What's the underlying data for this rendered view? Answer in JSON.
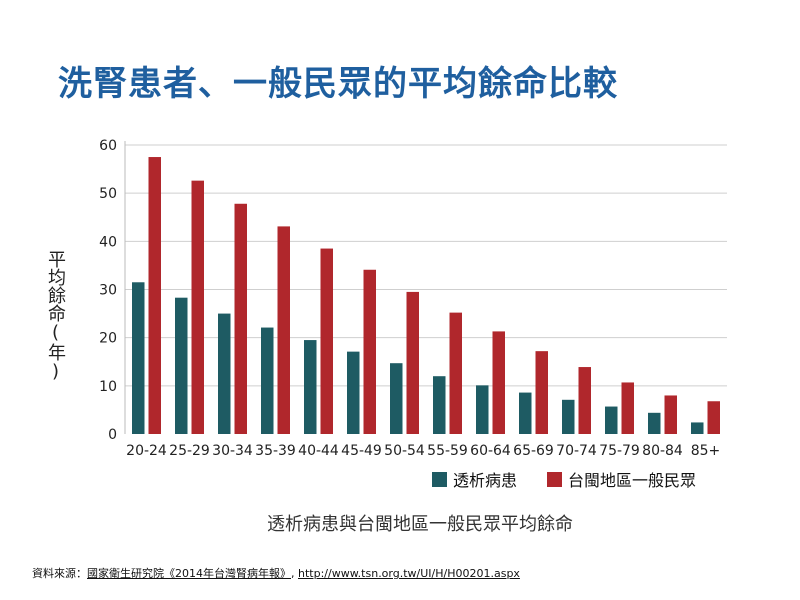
{
  "title": "洗腎患者、一般民眾的平均餘命比較",
  "colors": {
    "title": "#1f5f9f",
    "dialysis": "#1e5b63",
    "general": "#b0272c",
    "grid": "#cfcfcf"
  },
  "chart_data": {
    "type": "bar",
    "xlabel": "透析病患與台閩地區一般民眾平均餘命",
    "ylabel": "平均餘命(年)",
    "ylim": [
      0,
      60
    ],
    "yticks": [
      0,
      10,
      20,
      30,
      40,
      50,
      60
    ],
    "grid": true,
    "legend_position": "bottom-right",
    "categories": [
      "20-24",
      "25-29",
      "30-34",
      "35-39",
      "40-44",
      "45-49",
      "50-54",
      "55-59",
      "60-64",
      "65-69",
      "70-74",
      "75-79",
      "80-84",
      "85+"
    ],
    "series": [
      {
        "name": "透析病患",
        "color": "#1e5b63",
        "values": [
          31.5,
          28.3,
          25.0,
          22.1,
          19.5,
          17.1,
          14.7,
          12.0,
          10.1,
          8.6,
          7.1,
          5.7,
          4.4,
          2.4
        ]
      },
      {
        "name": "台閩地區一般民眾",
        "color": "#b0272c",
        "values": [
          57.5,
          52.6,
          47.8,
          43.1,
          38.5,
          34.1,
          29.5,
          25.2,
          21.3,
          17.2,
          13.9,
          10.7,
          8.0,
          6.8
        ]
      }
    ]
  },
  "source": {
    "prefix": "資料來源：",
    "publication": "國家衛生研究院《2014年台灣腎病年報》",
    "separator": ",  ",
    "url": "http://www.tsn.org.tw/UI/H/H00201.aspx"
  }
}
